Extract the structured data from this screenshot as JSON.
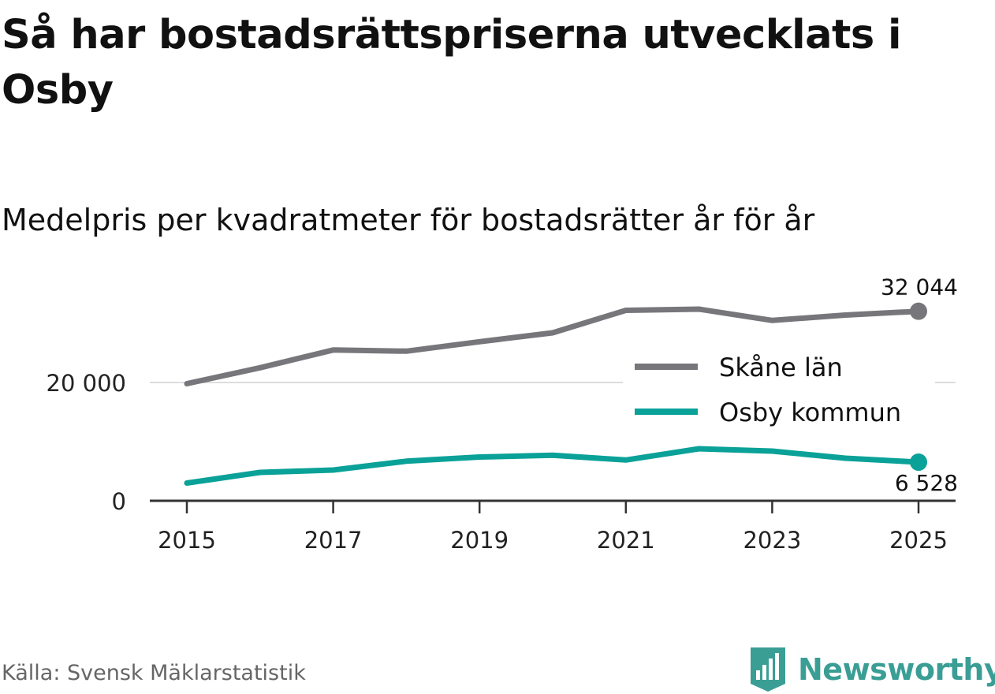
{
  "title": "Så har bostadsrättspriserna utvecklats i Osby",
  "subtitle": "Medelpris per kvadratmeter för bostadsrätter år för år",
  "source": "Källa: Svensk Mäklarstatistik",
  "brand": "Newsworthy",
  "colors": {
    "skane": "#77767b",
    "osby": "#0aa198",
    "grid": "#dddddd",
    "axis": "#333333",
    "brand": "#3a9e95"
  },
  "chart_data": {
    "type": "line",
    "title": "Medelpris per kvadratmeter för bostadsrätter år för år",
    "xlabel": "",
    "ylabel": "",
    "x": [
      2015,
      2016,
      2017,
      2018,
      2019,
      2020,
      2021,
      2022,
      2023,
      2024,
      2025
    ],
    "xlim": [
      2015,
      2025
    ],
    "ylim": [
      0,
      32044
    ],
    "x_ticks": [
      "2015",
      "2017",
      "2019",
      "2021",
      "2023",
      "2025"
    ],
    "y_ticks": [
      {
        "value": 0,
        "label": "0"
      },
      {
        "value": 20000,
        "label": "20 000"
      }
    ],
    "grid": true,
    "legend_position": "right",
    "series": [
      {
        "name": "Skåne län",
        "color_key": "skane",
        "values": [
          19800,
          22500,
          25500,
          25300,
          26900,
          28400,
          32200,
          32400,
          30500,
          31400,
          32044
        ],
        "end_label": "32 044"
      },
      {
        "name": "Osby kommun",
        "color_key": "osby",
        "values": [
          3000,
          4800,
          5200,
          6700,
          7400,
          7700,
          6900,
          8800,
          8400,
          7200,
          6528
        ],
        "end_label": "6 528"
      }
    ]
  }
}
